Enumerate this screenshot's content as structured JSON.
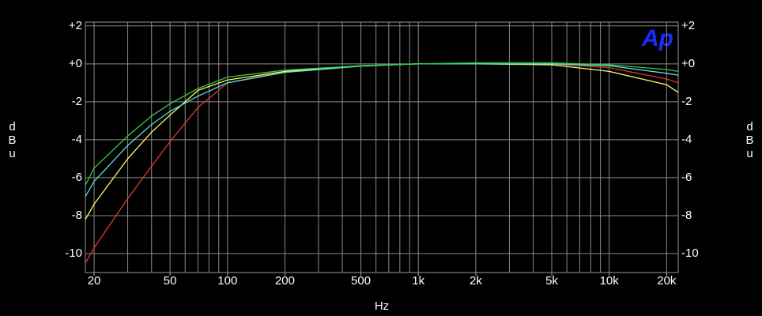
{
  "chart_data": {
    "type": "line",
    "x_label": "Hz",
    "y_label": "dBu",
    "logo": "Ap",
    "log_x": true,
    "grid": true,
    "xlim": [
      18,
      23000
    ],
    "ylim": [
      -11,
      2.2
    ],
    "xticks": [
      20,
      50,
      100,
      200,
      500,
      {
        "value": 1000,
        "label": "1k"
      },
      {
        "value": 2000,
        "label": "2k"
      },
      {
        "value": 5000,
        "label": "5k"
      },
      {
        "value": 10000,
        "label": "10k"
      },
      {
        "value": 20000,
        "label": "20k"
      }
    ],
    "xgrid": [
      20,
      30,
      40,
      50,
      60,
      70,
      80,
      90,
      100,
      200,
      300,
      400,
      500,
      600,
      700,
      800,
      900,
      1000,
      2000,
      3000,
      4000,
      5000,
      6000,
      7000,
      8000,
      9000,
      10000,
      20000
    ],
    "yticks": [
      {
        "value": 2,
        "label": "+2"
      },
      {
        "value": 0,
        "label": "+0"
      },
      -2,
      -4,
      -6,
      -8,
      -10
    ],
    "x": [
      18,
      20,
      30,
      40,
      50,
      70,
      100,
      200,
      500,
      1000,
      2000,
      5000,
      10000,
      20000,
      23000
    ],
    "series": [
      {
        "color": "#e03a2a",
        "values": [
          -10.5,
          -9.7,
          -7.1,
          -5.4,
          -4.1,
          -2.3,
          -1.0,
          -0.4,
          -0.1,
          0,
          0,
          0,
          -0.2,
          -0.8,
          -1.0
        ]
      },
      {
        "color": "#ffff66",
        "values": [
          -8.2,
          -7.4,
          -5.0,
          -3.6,
          -2.7,
          -1.4,
          -0.85,
          -0.4,
          -0.1,
          0,
          0,
          -0.05,
          -0.4,
          -1.1,
          -1.5
        ]
      },
      {
        "color": "#55dddd",
        "values": [
          -7.0,
          -6.2,
          -4.3,
          -3.2,
          -2.5,
          -1.7,
          -1.0,
          -0.45,
          -0.12,
          0,
          0,
          0,
          -0.1,
          -0.5,
          -0.6
        ]
      },
      {
        "color": "#33cc44",
        "values": [
          -6.4,
          -5.5,
          -3.8,
          -2.75,
          -2.1,
          -1.3,
          -0.7,
          -0.33,
          -0.1,
          0,
          0.05,
          0.05,
          -0.05,
          -0.3,
          -0.4
        ]
      }
    ]
  }
}
